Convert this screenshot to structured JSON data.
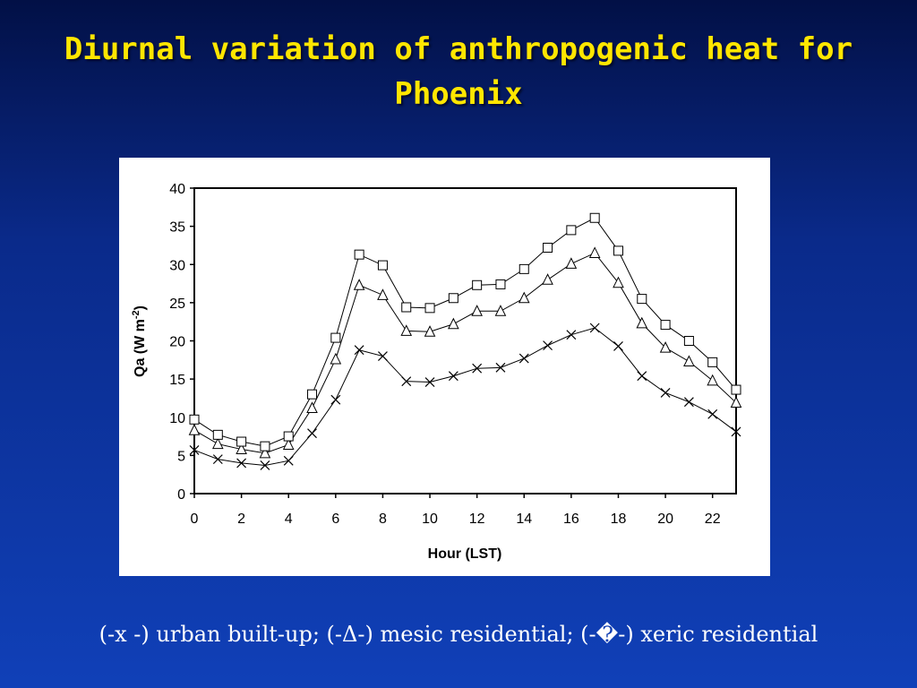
{
  "slide": {
    "title_line1": "Diurnal variation of anthropogenic heat for",
    "title_line2": "Phoenix",
    "caption": "(-x -) urban built-up; (-Δ-) mesic residential; (-�-) xeric residential"
  },
  "chart_data": {
    "type": "line",
    "xlabel": "Hour (LST)",
    "ylabel": "Qa (W m-2)",
    "xlim": [
      0,
      23
    ],
    "ylim": [
      0,
      40
    ],
    "xticks": [
      0,
      2,
      4,
      6,
      8,
      10,
      12,
      14,
      16,
      18,
      20,
      22
    ],
    "yticks": [
      0,
      5,
      10,
      15,
      20,
      25,
      30,
      35,
      40
    ],
    "grid": false,
    "x": [
      0,
      1,
      2,
      3,
      4,
      5,
      6,
      7,
      8,
      9,
      10,
      11,
      12,
      13,
      14,
      15,
      16,
      17,
      18,
      19,
      20,
      21,
      22,
      23
    ],
    "series": [
      {
        "marker": "x",
        "values": [
          5.7,
          4.5,
          4.0,
          3.7,
          4.3,
          7.9,
          12.3,
          18.8,
          18.0,
          14.7,
          14.6,
          15.4,
          16.4,
          16.5,
          17.7,
          19.4,
          20.8,
          21.7,
          19.3,
          15.4,
          13.2,
          12.0,
          10.4,
          8.1
        ]
      },
      {
        "marker": "triangle",
        "values": [
          8.3,
          6.5,
          5.8,
          5.3,
          6.4,
          11.2,
          17.6,
          27.3,
          26.0,
          21.3,
          21.2,
          22.2,
          23.9,
          23.9,
          25.6,
          28.0,
          30.1,
          31.5,
          27.6,
          22.3,
          19.1,
          17.3,
          14.8,
          11.9
        ]
      },
      {
        "marker": "square",
        "values": [
          9.7,
          7.7,
          6.8,
          6.2,
          7.5,
          13.0,
          20.4,
          31.3,
          29.9,
          24.4,
          24.3,
          25.6,
          27.3,
          27.4,
          29.4,
          32.2,
          34.5,
          36.1,
          31.8,
          25.5,
          22.1,
          20.0,
          17.2,
          13.6
        ]
      }
    ]
  }
}
